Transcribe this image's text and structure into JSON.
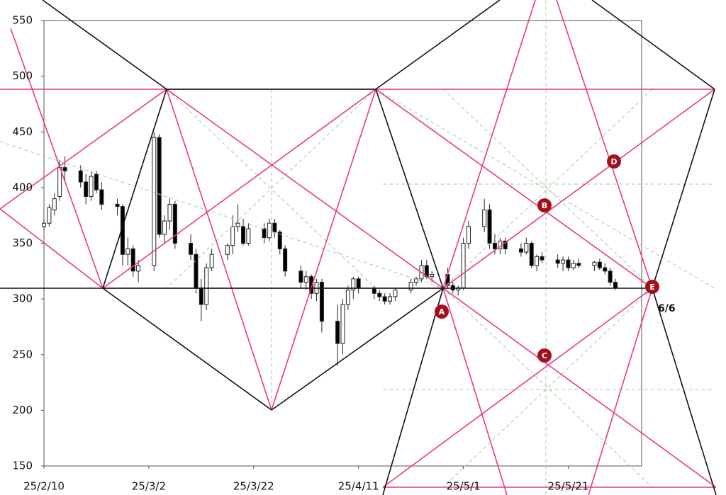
{
  "chart_data": {
    "type": "candlestick",
    "x": [
      "25/2/10",
      "25/2/11",
      "25/2/12",
      "25/2/13",
      "25/2/14",
      "25/2/17",
      "25/2/18",
      "25/2/19",
      "25/2/20",
      "25/2/21",
      "25/2/24",
      "25/2/25",
      "25/2/26",
      "25/2/27",
      "25/2/28",
      "25/3/3",
      "25/3/4",
      "25/3/5",
      "25/3/6",
      "25/3/7",
      "25/3/10",
      "25/3/11",
      "25/3/12",
      "25/3/13",
      "25/3/14",
      "25/3/17",
      "25/3/18",
      "25/3/19",
      "25/3/20",
      "25/3/21",
      "25/3/24",
      "25/3/25",
      "25/3/26",
      "25/3/27",
      "25/3/28",
      "25/3/31",
      "25/4/1",
      "25/4/2",
      "25/4/3",
      "25/4/4",
      "25/4/7",
      "25/4/8",
      "25/4/9",
      "25/4/10",
      "25/4/11",
      "25/4/14",
      "25/4/15",
      "25/4/16",
      "25/4/17",
      "25/4/18",
      "25/4/21",
      "25/4/22",
      "25/4/23",
      "25/4/24",
      "25/4/25",
      "25/4/28",
      "25/4/29",
      "25/4/30",
      "25/5/1",
      "25/5/2",
      "25/5/5",
      "25/5/6",
      "25/5/7",
      "25/5/8",
      "25/5/9",
      "25/5/12",
      "25/5/13",
      "25/5/14",
      "25/5/15",
      "25/5/16",
      "25/5/19",
      "25/5/20",
      "25/5/21",
      "25/5/22",
      "25/5/23",
      "25/5/26",
      "25/5/27",
      "25/5/28",
      "25/5/29",
      "25/5/30"
    ],
    "ohlc": [
      [
        365,
        372,
        362,
        368
      ],
      [
        368,
        385,
        365,
        382
      ],
      [
        380,
        395,
        375,
        390
      ],
      [
        392,
        425,
        388,
        418
      ],
      [
        418,
        428,
        405,
        415
      ],
      [
        415,
        420,
        400,
        405
      ],
      [
        405,
        412,
        385,
        392
      ],
      [
        392,
        415,
        388,
        410
      ],
      [
        412,
        415,
        395,
        398
      ],
      [
        398,
        405,
        380,
        385
      ],
      [
        385,
        390,
        375,
        383
      ],
      [
        383,
        385,
        330,
        340
      ],
      [
        340,
        355,
        330,
        345
      ],
      [
        345,
        348,
        320,
        325
      ],
      [
        325,
        335,
        315,
        330
      ],
      [
        330,
        450,
        325,
        445
      ],
      [
        445,
        448,
        355,
        358
      ],
      [
        358,
        375,
        350,
        370
      ],
      [
        370,
        390,
        362,
        385
      ],
      [
        385,
        388,
        345,
        350
      ],
      [
        350,
        358,
        335,
        340
      ],
      [
        340,
        345,
        305,
        310
      ],
      [
        310,
        318,
        280,
        295
      ],
      [
        295,
        332,
        290,
        328
      ],
      [
        328,
        345,
        325,
        340
      ],
      [
        340,
        350,
        335,
        348
      ],
      [
        348,
        375,
        340,
        365
      ],
      [
        365,
        385,
        360,
        368
      ],
      [
        365,
        372,
        348,
        350
      ],
      [
        350,
        368,
        348,
        363
      ],
      [
        363,
        368,
        350,
        355
      ],
      [
        355,
        372,
        352,
        368
      ],
      [
        368,
        372,
        355,
        360
      ],
      [
        360,
        362,
        340,
        345
      ],
      [
        345,
        348,
        320,
        325
      ],
      [
        325,
        330,
        310,
        315
      ],
      [
        315,
        325,
        308,
        320
      ],
      [
        320,
        322,
        300,
        305
      ],
      [
        305,
        318,
        298,
        315
      ],
      [
        315,
        318,
        270,
        280
      ],
      [
        280,
        295,
        240,
        260
      ],
      [
        260,
        300,
        250,
        295
      ],
      [
        295,
        312,
        290,
        308
      ],
      [
        308,
        320,
        300,
        318
      ],
      [
        318,
        320,
        305,
        310
      ],
      [
        310,
        312,
        300,
        305
      ],
      [
        305,
        308,
        298,
        302
      ],
      [
        302,
        305,
        295,
        298
      ],
      [
        298,
        305,
        295,
        302
      ],
      [
        302,
        310,
        298,
        308
      ],
      [
        308,
        318,
        305,
        315
      ],
      [
        315,
        320,
        312,
        318
      ],
      [
        318,
        335,
        315,
        330
      ],
      [
        330,
        335,
        318,
        320
      ],
      [
        320,
        325,
        315,
        322
      ],
      [
        322,
        328,
        310,
        312
      ],
      [
        312,
        315,
        305,
        308
      ],
      [
        308,
        312,
        303,
        310
      ],
      [
        310,
        355,
        308,
        350
      ],
      [
        350,
        370,
        345,
        365
      ],
      [
        365,
        390,
        360,
        380
      ],
      [
        380,
        385,
        345,
        350
      ],
      [
        350,
        358,
        340,
        345
      ],
      [
        345,
        355,
        340,
        352
      ],
      [
        352,
        355,
        340,
        345
      ],
      [
        345,
        350,
        338,
        342
      ],
      [
        342,
        355,
        340,
        350
      ],
      [
        350,
        352,
        328,
        330
      ],
      [
        330,
        340,
        325,
        338
      ],
      [
        338,
        342,
        332,
        335
      ],
      [
        335,
        340,
        328,
        332
      ],
      [
        332,
        338,
        325,
        335
      ],
      [
        335,
        338,
        325,
        328
      ],
      [
        328,
        335,
        326,
        332
      ],
      [
        332,
        336,
        328,
        330
      ],
      [
        330,
        334,
        325,
        333
      ],
      [
        333,
        336,
        326,
        328
      ],
      [
        328,
        332,
        322,
        325
      ],
      [
        325,
        328,
        312,
        315
      ],
      [
        315,
        318,
        308,
        310
      ]
    ],
    "up_color": "#ffffff",
    "down_color": "#000000",
    "xlim": [
      "25/2/10",
      "25/6/4"
    ],
    "xticks": [
      "25/2/10",
      "25/3/2",
      "25/3/22",
      "25/4/11",
      "25/5/1",
      "25/5/21"
    ],
    "ylim": [
      150,
      550
    ],
    "yticks": [
      150,
      200,
      250,
      300,
      350,
      400,
      450,
      500,
      550
    ],
    "markers": [
      "A",
      "B",
      "C",
      "D",
      "E"
    ],
    "note": "6/6"
  }
}
